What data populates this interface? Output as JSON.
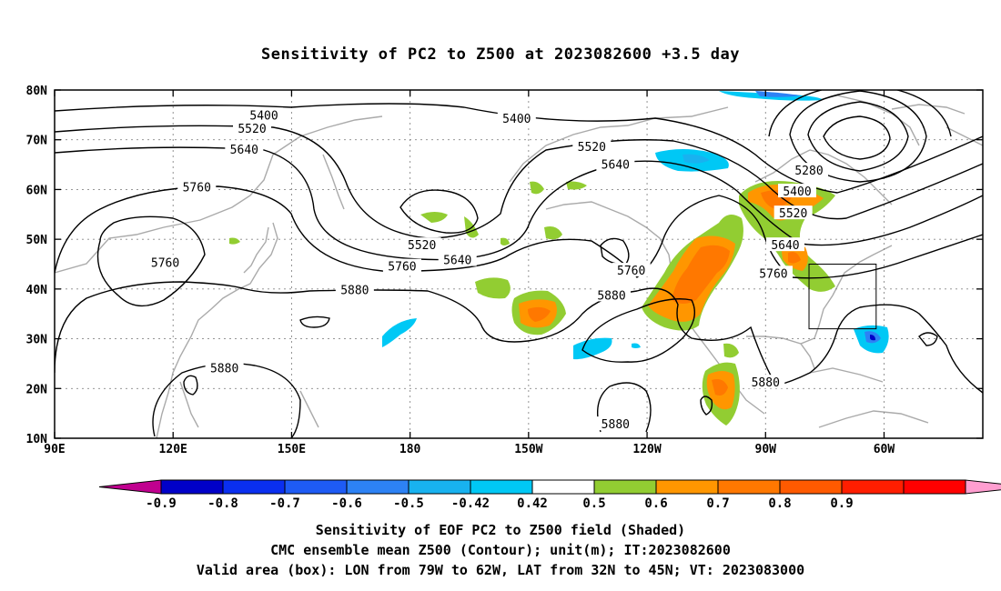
{
  "title": "Sensitivity of PC2 to Z500 at 2023082600 +3.5 day",
  "captions": {
    "line1": "Sensitivity of EOF PC2 to Z500 field (Shaded)",
    "line2": "CMC ensemble mean Z500 (Contour); unit(m); IT:2023082600",
    "line3": "Valid area (box): LON from 79W to 62W, LAT from 32N to 45N; VT: 2023083000"
  },
  "map": {
    "lon_range": [
      90,
      325
    ],
    "lat_range": [
      10,
      80
    ],
    "lat_ticks": [
      {
        "lat": 80,
        "label": "80N"
      },
      {
        "lat": 70,
        "label": "70N"
      },
      {
        "lat": 60,
        "label": "60N"
      },
      {
        "lat": 50,
        "label": "50N"
      },
      {
        "lat": 40,
        "label": "40N"
      },
      {
        "lat": 30,
        "label": "30N"
      },
      {
        "lat": 20,
        "label": "20N"
      },
      {
        "lat": 10,
        "label": "10N"
      }
    ],
    "lon_ticks": [
      {
        "lon": 90,
        "label": "90E"
      },
      {
        "lon": 120,
        "label": "120E"
      },
      {
        "lon": 150,
        "label": "150E"
      },
      {
        "lon": 180,
        "label": "180"
      },
      {
        "lon": 210,
        "label": "150W"
      },
      {
        "lon": 240,
        "label": "120W"
      },
      {
        "lon": 270,
        "label": "90W"
      },
      {
        "lon": 300,
        "label": "60W"
      }
    ],
    "valid_box": {
      "lon_min": 281,
      "lon_max": 298,
      "lat_min": 32,
      "lat_max": 45
    },
    "contour_labels": [
      {
        "text": "5400",
        "lon": 143,
        "lat": 75
      },
      {
        "text": "5400",
        "lon": 207,
        "lat": 74.3
      },
      {
        "text": "5400",
        "lon": 278,
        "lat": 59.7
      },
      {
        "text": "5520",
        "lon": 140,
        "lat": 72.3
      },
      {
        "text": "5520",
        "lon": 226,
        "lat": 68.7
      },
      {
        "text": "5520",
        "lon": 277,
        "lat": 55.3
      },
      {
        "text": "5520",
        "lon": 183,
        "lat": 48.9
      },
      {
        "text": "5640",
        "lon": 138,
        "lat": 68.1
      },
      {
        "text": "5640",
        "lon": 232,
        "lat": 65.1
      },
      {
        "text": "5640",
        "lon": 275,
        "lat": 48.9
      },
      {
        "text": "5640",
        "lon": 192,
        "lat": 45.9
      },
      {
        "text": "5760",
        "lon": 126,
        "lat": 60.5
      },
      {
        "text": "5760",
        "lon": 118,
        "lat": 45.4
      },
      {
        "text": "5760",
        "lon": 178,
        "lat": 44.6
      },
      {
        "text": "5760",
        "lon": 236,
        "lat": 43.8
      },
      {
        "text": "5760",
        "lon": 272,
        "lat": 43.2
      },
      {
        "text": "5880",
        "lon": 166,
        "lat": 39.9
      },
      {
        "text": "5880",
        "lon": 231,
        "lat": 38.8
      },
      {
        "text": "5880",
        "lon": 133,
        "lat": 24.2
      },
      {
        "text": "5880",
        "lon": 270,
        "lat": 21.3
      },
      {
        "text": "5880",
        "lon": 232,
        "lat": 12.9
      },
      {
        "text": "5280",
        "lon": 281,
        "lat": 63.9
      }
    ]
  },
  "colorbar": {
    "labels": [
      "-0.9",
      "-0.8",
      "-0.7",
      "-0.6",
      "-0.5",
      "-0.42",
      "0.42",
      "0.5",
      "0.6",
      "0.7",
      "0.8",
      "0.9"
    ],
    "colors": [
      "#c0008f",
      "#0000c8",
      "#0a2ff0",
      "#1e5bf5",
      "#2d82f5",
      "#18b2f0",
      "#00c8f5",
      "#ffffff",
      "#92cd32",
      "#ff9600",
      "#ff7800",
      "#ff5a00",
      "#ff1e00",
      "#ff0000",
      "#ff9ed0"
    ]
  }
}
